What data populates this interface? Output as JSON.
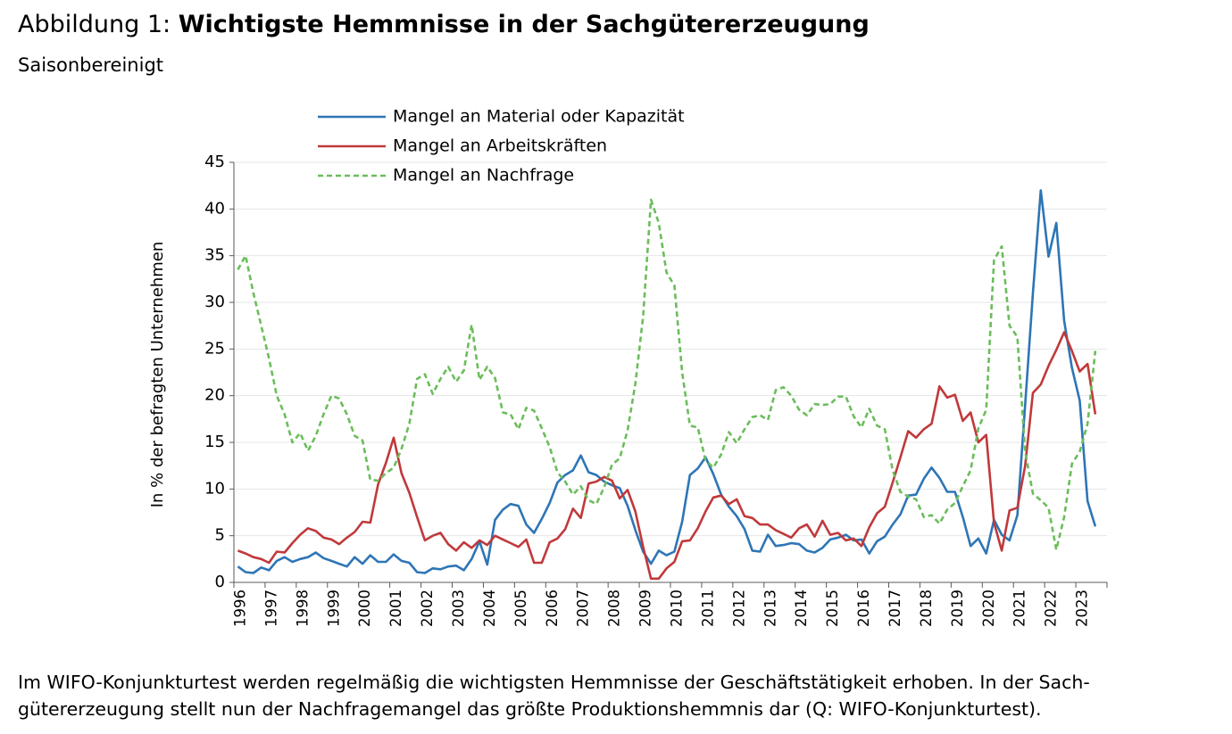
{
  "header": {
    "title_prefix": "Abbildung 1: ",
    "title_bold": "Wichtigste Hemmnisse in der Sachgütererzeugung",
    "subtitle": "Saisonbereinigt"
  },
  "caption": "Im WIFO-Konjunkturtest werden regelmäßig die wichtigsten Hemmnisse der Geschäftstätigkeit erhoben. In der Sach-gütererzeugung stellt nun der Nachfragemangel das größte Produktionshemmnis dar (Q: WIFO-Konjunkturtest).",
  "chart_data": {
    "type": "line",
    "ylabel": "In % der befragten Unternehmen",
    "ylim": [
      0,
      45
    ],
    "yticks": [
      0,
      5,
      10,
      15,
      20,
      25,
      30,
      35,
      40,
      45
    ],
    "xticks": [
      "1996",
      "1997",
      "1998",
      "1999",
      "2000",
      "2001",
      "2002",
      "2003",
      "2004",
      "2005",
      "2006",
      "2007",
      "2008",
      "2009",
      "2010",
      "2011",
      "2012",
      "2013",
      "2014",
      "2015",
      "2016",
      "2017",
      "2018",
      "2019",
      "2020",
      "2021",
      "2022",
      "2023"
    ],
    "x_start": 1996,
    "points_per_year": 4,
    "grid": true,
    "legend_position": "top-left",
    "series": [
      {
        "name": "Mangel an Material oder Kapazität",
        "color": "#2E75B6",
        "dash": "solid",
        "values": [
          1.7,
          1.1,
          1.0,
          1.6,
          1.3,
          2.3,
          2.7,
          2.2,
          2.5,
          2.7,
          3.2,
          2.6,
          2.3,
          2.0,
          1.7,
          2.7,
          2.0,
          2.9,
          2.2,
          2.2,
          3.0,
          2.3,
          2.1,
          1.1,
          1.0,
          1.5,
          1.4,
          1.7,
          1.8,
          1.3,
          2.5,
          4.4,
          1.9,
          6.7,
          7.8,
          8.4,
          8.2,
          6.2,
          5.3,
          6.8,
          8.5,
          10.7,
          11.5,
          12.0,
          13.6,
          11.8,
          11.5,
          10.8,
          10.4,
          10.1,
          8.2,
          5.6,
          3.3,
          2.0,
          3.4,
          2.9,
          3.3,
          6.5,
          11.5,
          12.2,
          13.4,
          11.6,
          9.4,
          8.1,
          7.1,
          5.7,
          3.4,
          3.3,
          5.1,
          3.9,
          4.0,
          4.2,
          4.1,
          3.4,
          3.2,
          3.7,
          4.6,
          4.8,
          5.1,
          4.5,
          4.6,
          3.1,
          4.4,
          4.9,
          6.2,
          7.3,
          9.3,
          9.4,
          11.1,
          12.3,
          11.2,
          9.7,
          9.7,
          7.0,
          3.9,
          4.7,
          3.1,
          6.7,
          5.1,
          4.5,
          7.2,
          19.0,
          31.0,
          42.0,
          34.9,
          38.5,
          28.0,
          23.0,
          19.5,
          8.7,
          6.0
        ]
      },
      {
        "name": "Mangel an Arbeitskräften",
        "color": "#C0393B",
        "dash": "solid",
        "values": [
          3.4,
          3.1,
          2.7,
          2.5,
          2.1,
          3.3,
          3.2,
          4.2,
          5.1,
          5.8,
          5.5,
          4.8,
          4.6,
          4.1,
          4.8,
          5.4,
          6.5,
          6.4,
          10.5,
          12.8,
          15.5,
          11.7,
          9.6,
          7.0,
          4.5,
          5.0,
          5.3,
          4.1,
          3.4,
          4.3,
          3.7,
          4.5,
          4.0,
          5.0,
          4.6,
          4.2,
          3.8,
          4.6,
          2.1,
          2.1,
          4.3,
          4.7,
          5.7,
          7.9,
          6.9,
          10.6,
          10.8,
          11.3,
          10.9,
          9.0,
          9.9,
          7.6,
          3.8,
          0.4,
          0.4,
          1.5,
          2.2,
          4.4,
          4.5,
          5.8,
          7.6,
          9.1,
          9.3,
          8.4,
          8.9,
          7.1,
          6.9,
          6.2,
          6.2,
          5.6,
          5.2,
          4.8,
          5.8,
          6.2,
          4.9,
          6.6,
          5.1,
          5.3,
          4.5,
          4.7,
          3.9,
          5.9,
          7.4,
          8.1,
          10.7,
          13.4,
          16.2,
          15.5,
          16.4,
          17.0,
          21.0,
          19.8,
          20.1,
          17.3,
          18.2,
          15.0,
          15.8,
          6.4,
          3.4,
          7.7,
          8.0,
          12.5,
          20.3,
          21.2,
          23.2,
          24.9,
          26.8,
          24.8,
          22.6,
          23.4,
          18.0
        ]
      },
      {
        "name": "Mangel an Nachfrage",
        "color": "#6BBD5B",
        "dash": "dashed",
        "values": [
          33.5,
          35.0,
          31.0,
          27.5,
          24.0,
          20.0,
          18.0,
          15.0,
          16.0,
          14.1,
          15.7,
          18.0,
          20.0,
          19.7,
          18.0,
          15.7,
          15.2,
          11.0,
          10.9,
          11.7,
          12.3,
          14.3,
          17.0,
          21.8,
          22.3,
          20.2,
          21.8,
          23.1,
          21.5,
          22.7,
          27.6,
          21.7,
          23.1,
          21.9,
          18.2,
          18.0,
          16.4,
          18.7,
          18.4,
          16.5,
          14.5,
          11.8,
          10.8,
          9.4,
          10.3,
          8.8,
          8.4,
          10.2,
          12.6,
          13.3,
          16.3,
          21.3,
          28.5,
          41.0,
          38.5,
          33.2,
          31.8,
          22.5,
          16.8,
          16.6,
          13.1,
          12.3,
          13.7,
          16.1,
          14.9,
          16.4,
          17.7,
          17.9,
          17.4,
          20.6,
          20.9,
          20.0,
          18.5,
          17.9,
          19.1,
          19.0,
          19.1,
          19.9,
          19.9,
          17.8,
          16.6,
          18.6,
          16.8,
          16.4,
          12.0,
          9.7,
          9.2,
          8.9,
          7.0,
          7.2,
          6.3,
          7.8,
          8.5,
          10.3,
          12.0,
          16.5,
          18.5,
          34.5,
          36.0,
          27.5,
          26.3,
          14.0,
          9.5,
          8.8,
          8.0,
          3.5,
          7.0,
          12.7,
          14.0,
          17.0,
          24.8
        ]
      }
    ]
  }
}
